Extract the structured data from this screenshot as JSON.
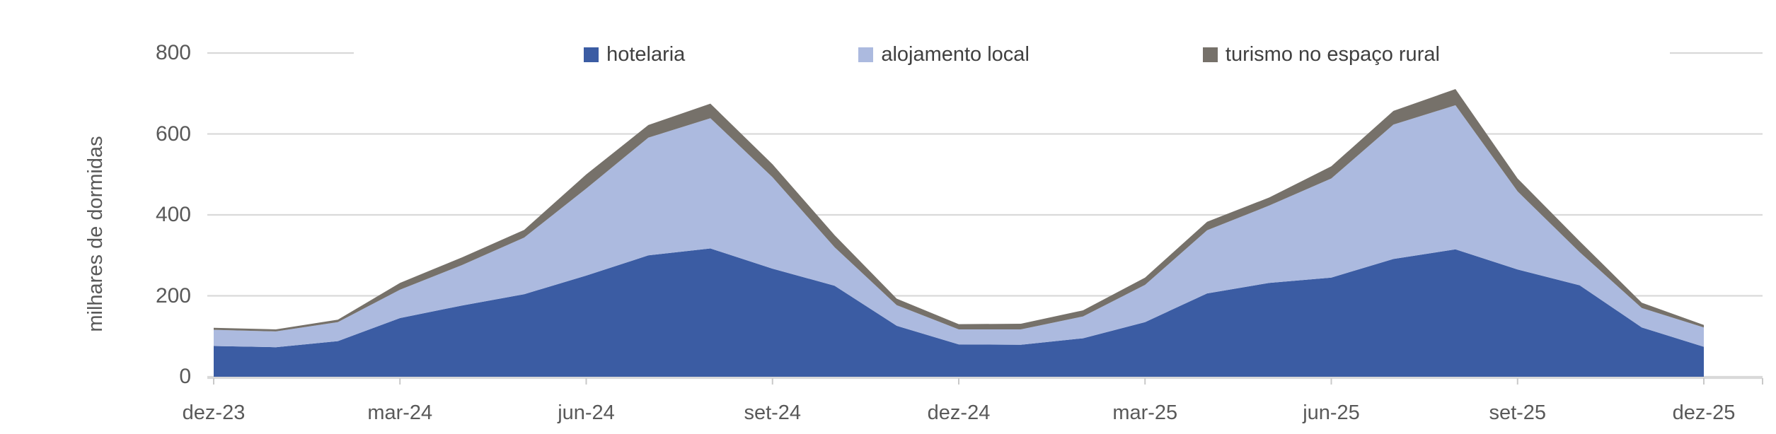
{
  "chart_data": {
    "type": "area",
    "stacked": true,
    "ylabel": "milhares de dormidas",
    "xlabel": "",
    "ylim": [
      0,
      800
    ],
    "y_ticks": [
      0,
      200,
      400,
      600,
      800
    ],
    "grid": "horizontal",
    "legend_position": "top",
    "months": [
      "dez-23",
      "jan-24",
      "fev-24",
      "mar-24",
      "abr-24",
      "mai-24",
      "jun-24",
      "jul-24",
      "ago-24",
      "set-24",
      "out-24",
      "nov-24",
      "dez-24",
      "jan-25",
      "fev-25",
      "mar-25",
      "abr-25",
      "mai-25",
      "jun-25",
      "jul-25",
      "ago-25",
      "set-25",
      "out-25",
      "nov-25",
      "dez-25"
    ],
    "x_tick_labels": [
      "dez-23",
      "mar-24",
      "jun-24",
      "set-24",
      "dez-24",
      "mar-25",
      "jun-25",
      "set-25",
      "dez-25"
    ],
    "x_tick_indices": [
      0,
      3,
      6,
      9,
      12,
      15,
      18,
      21,
      24
    ],
    "series": [
      {
        "name": "hotelaria",
        "color": "#3B5CA3",
        "values": [
          76,
          73,
          88,
          145,
          176,
          204,
          250,
          300,
          317,
          267,
          225,
          126,
          80,
          79,
          95,
          135,
          206,
          232,
          245,
          291,
          315,
          265,
          226,
          122,
          74
        ]
      },
      {
        "name": "alojamento local",
        "color": "#ACBADF",
        "values": [
          40,
          39,
          47,
          70,
          100,
          140,
          215,
          291,
          322,
          226,
          95,
          51,
          37,
          38,
          54,
          92,
          156,
          191,
          245,
          332,
          356,
          193,
          82,
          48,
          48
        ]
      },
      {
        "name": "turismo no espaço rural",
        "color": "#76716A",
        "values": [
          5,
          5,
          6,
          17,
          19,
          19,
          35,
          31,
          36,
          32,
          30,
          16,
          13,
          14,
          15,
          18,
          21,
          20,
          30,
          34,
          40,
          32,
          27,
          13,
          6
        ]
      }
    ],
    "colors": {
      "gridline": "#D9D9D9",
      "axis_line": "#D9D9D9",
      "tick_mark": "#C9C9C9",
      "axis_text": "#595959",
      "legend_text": "#404040"
    }
  }
}
